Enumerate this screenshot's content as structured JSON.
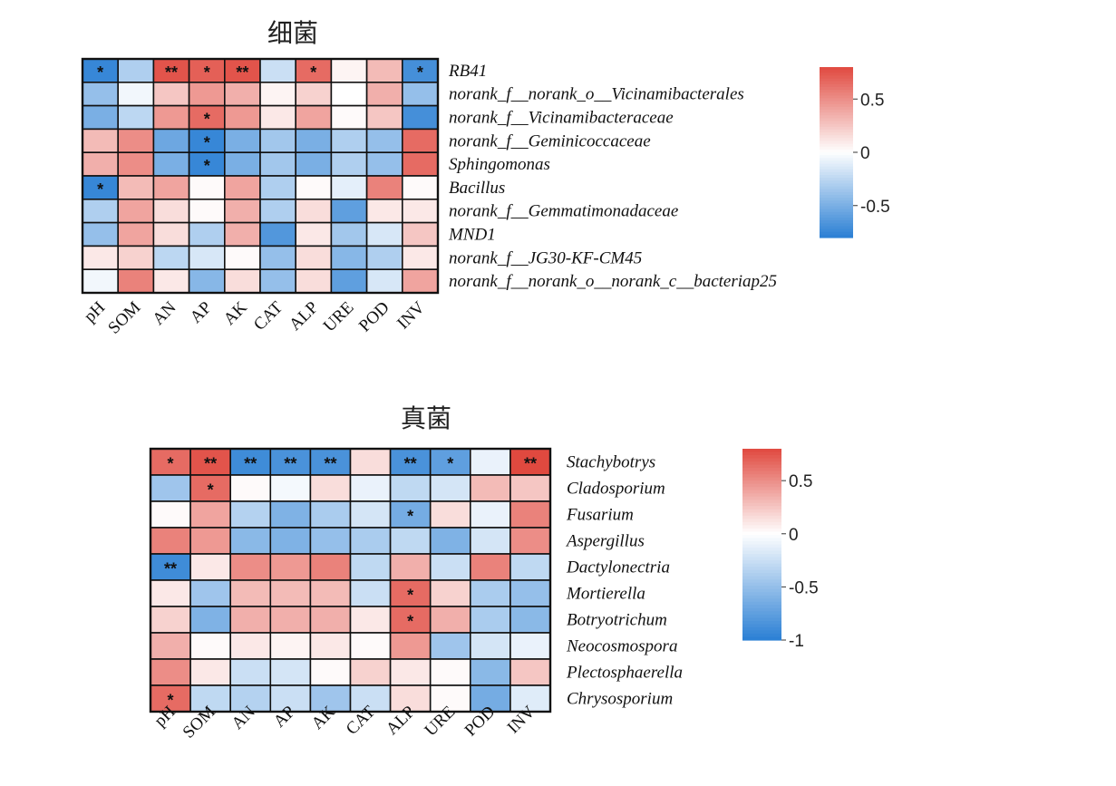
{
  "chart_data": [
    {
      "type": "heatmap",
      "title": "细菌",
      "columns": [
        "pH",
        "SOM",
        "AN",
        "AP",
        "AK",
        "CAT",
        "ALP",
        "URE",
        "POD",
        "INV"
      ],
      "rows": [
        "RB41",
        "norank_f__norank_o__Vicinamibacterales",
        "norank_f__Vicinamibacteraceae",
        "norank_f__Geminicoccaceae",
        "Sphingomonas",
        "Bacillus",
        "norank_f__Gemmatimonadaceae",
        "MND1",
        "norank_f__JG30-KF-CM45",
        "norank_f__norank_o__norank_c__bacteriap25"
      ],
      "values": [
        [
          -0.75,
          -0.3,
          0.75,
          0.7,
          0.75,
          -0.2,
          0.65,
          0.05,
          0.3,
          -0.7
        ],
        [
          -0.4,
          -0.05,
          0.25,
          0.45,
          0.35,
          0.05,
          0.2,
          0.0,
          0.35,
          -0.4
        ],
        [
          -0.5,
          -0.25,
          0.45,
          0.65,
          0.45,
          0.1,
          0.4,
          0.02,
          0.25,
          -0.7
        ],
        [
          0.3,
          0.5,
          -0.55,
          -0.75,
          -0.5,
          -0.35,
          -0.5,
          -0.3,
          -0.4,
          0.65
        ],
        [
          0.35,
          0.5,
          -0.5,
          -0.75,
          -0.5,
          -0.35,
          -0.5,
          -0.3,
          -0.4,
          0.65
        ],
        [
          -0.75,
          0.3,
          0.4,
          0.02,
          0.4,
          -0.3,
          0.02,
          -0.1,
          0.55,
          0.02
        ],
        [
          -0.3,
          0.4,
          0.15,
          0.02,
          0.35,
          -0.3,
          0.15,
          -0.6,
          0.1,
          0.1
        ],
        [
          -0.4,
          0.4,
          0.15,
          -0.3,
          0.35,
          -0.65,
          0.1,
          -0.35,
          -0.15,
          0.25
        ],
        [
          0.1,
          0.2,
          -0.25,
          -0.15,
          0.02,
          -0.4,
          0.15,
          -0.45,
          -0.3,
          0.1
        ],
        [
          -0.05,
          0.55,
          0.1,
          -0.45,
          0.15,
          -0.4,
          0.15,
          -0.6,
          -0.15,
          0.4
        ]
      ],
      "stars": [
        [
          "*",
          "",
          "**",
          "*",
          "**",
          "",
          "*",
          "",
          "",
          "*"
        ],
        [
          "",
          "",
          "",
          "",
          "",
          "",
          "",
          "",
          "",
          ""
        ],
        [
          "",
          "",
          "",
          "*",
          "",
          "",
          "",
          "",
          "",
          ""
        ],
        [
          "",
          "",
          "",
          "*",
          "",
          "",
          "",
          "",
          "",
          ""
        ],
        [
          "",
          "",
          "",
          "*",
          "",
          "",
          "",
          "",
          "",
          ""
        ],
        [
          "*",
          "",
          "",
          "",
          "",
          "",
          "",
          "",
          "",
          ""
        ],
        [
          "",
          "",
          "",
          "",
          "",
          "",
          "",
          "",
          "",
          ""
        ],
        [
          "",
          "",
          "",
          "",
          "",
          "",
          "",
          "",
          "",
          ""
        ],
        [
          "",
          "",
          "",
          "",
          "",
          "",
          "",
          "",
          "",
          ""
        ],
        [
          "",
          "",
          "",
          "",
          "",
          "",
          "",
          "",
          "",
          ""
        ]
      ],
      "colorbar": {
        "min": -0.8,
        "max": 0.8,
        "ticks": [
          0.5,
          0,
          -0.5
        ],
        "tick_labels": [
          "0.5",
          "0",
          "-0.5"
        ]
      }
    },
    {
      "type": "heatmap",
      "title": "真菌",
      "columns": [
        "pH",
        "SOM",
        "AN",
        "AP",
        "AK",
        "CAT",
        "ALP",
        "URE",
        "POD",
        "INV"
      ],
      "rows": [
        "Stachybotrys",
        "Cladosporium",
        "Fusarium",
        "Aspergillus",
        "Dactylonectria",
        "Mortierella",
        "Botryotrichum",
        "Neocosmospora",
        "Plectosphaerella",
        "Chrysosporium"
      ],
      "values": [
        [
          0.65,
          0.75,
          -0.9,
          -0.85,
          -0.85,
          0.15,
          -0.85,
          -0.75,
          -0.1,
          0.8
        ],
        [
          -0.45,
          0.65,
          0.02,
          -0.05,
          0.15,
          -0.1,
          -0.3,
          -0.2,
          0.3,
          0.25
        ],
        [
          0.02,
          0.4,
          -0.35,
          -0.6,
          -0.4,
          -0.2,
          -0.65,
          0.15,
          -0.1,
          0.55
        ],
        [
          0.55,
          0.45,
          -0.55,
          -0.6,
          -0.5,
          -0.4,
          -0.3,
          -0.6,
          -0.2,
          0.5
        ],
        [
          -0.9,
          0.1,
          0.5,
          0.45,
          0.55,
          -0.3,
          0.35,
          -0.25,
          0.55,
          -0.3
        ],
        [
          0.1,
          -0.45,
          0.3,
          0.3,
          0.3,
          -0.25,
          0.65,
          0.2,
          -0.4,
          -0.5
        ],
        [
          0.2,
          -0.6,
          0.35,
          0.35,
          0.35,
          0.1,
          0.65,
          0.35,
          -0.4,
          -0.55
        ],
        [
          0.35,
          0.02,
          0.1,
          0.05,
          0.1,
          0.02,
          0.45,
          -0.45,
          -0.2,
          -0.1
        ],
        [
          0.5,
          0.1,
          -0.25,
          -0.2,
          0.02,
          0.2,
          0.1,
          0.02,
          -0.55,
          0.25
        ],
        [
          0.65,
          -0.3,
          -0.35,
          -0.25,
          -0.45,
          -0.25,
          0.15,
          0.02,
          -0.65,
          -0.15
        ]
      ],
      "stars": [
        [
          "*",
          "**",
          "**",
          "**",
          "**",
          "",
          "**",
          "*",
          "",
          "**"
        ],
        [
          "",
          "*",
          "",
          "",
          "",
          "",
          "",
          "",
          "",
          ""
        ],
        [
          "",
          "",
          "",
          "",
          "",
          "",
          "*",
          "",
          "",
          ""
        ],
        [
          "",
          "",
          "",
          "",
          "",
          "",
          "",
          "",
          "",
          ""
        ],
        [
          "**",
          "",
          "",
          "",
          "",
          "",
          "",
          "",
          "",
          ""
        ],
        [
          "",
          "",
          "",
          "",
          "",
          "",
          "*",
          "",
          "",
          ""
        ],
        [
          "",
          "",
          "",
          "",
          "",
          "",
          "*",
          "",
          "",
          ""
        ],
        [
          "",
          "",
          "",
          "",
          "",
          "",
          "",
          "",
          "",
          ""
        ],
        [
          "",
          "",
          "",
          "",
          "",
          "",
          "",
          "",
          "",
          ""
        ],
        [
          "*",
          "",
          "",
          "",
          "",
          "",
          "",
          "",
          "",
          ""
        ]
      ],
      "colorbar": {
        "min": -1,
        "max": 0.8,
        "ticks": [
          0.5,
          0,
          -0.5,
          -1
        ],
        "tick_labels": [
          "0.5",
          "0",
          "-0.5",
          "-1"
        ]
      }
    }
  ],
  "colors": {
    "negative": "#2a7fd4",
    "neutral": "#ffffff",
    "positive": "#e0493f",
    "grid": "#111111"
  }
}
